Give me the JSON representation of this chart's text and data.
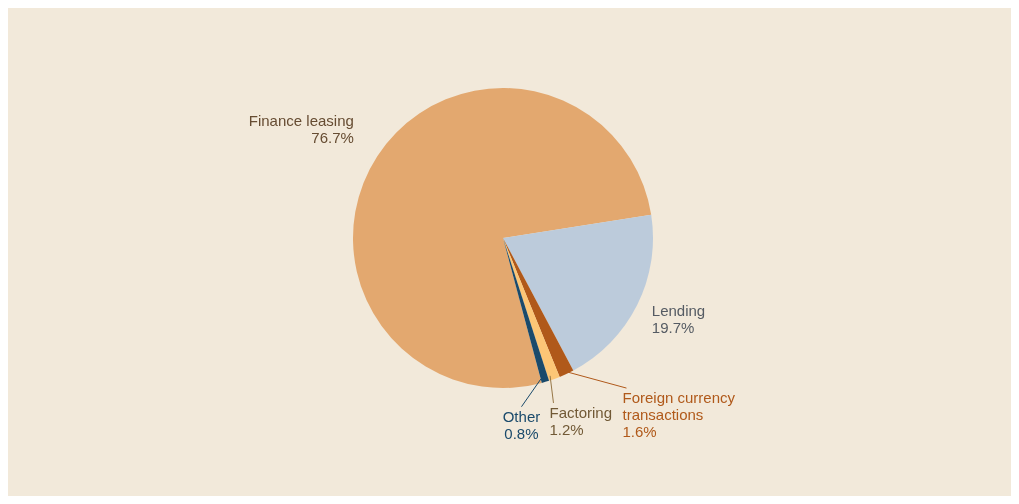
{
  "chart_data": {
    "type": "pie",
    "categories": [
      "Finance leasing",
      "Lending",
      "Foreign currency transactions",
      "Factoring",
      "Other"
    ],
    "values": [
      76.7,
      19.7,
      1.6,
      1.2,
      0.8
    ],
    "colors": [
      "#e3a86f",
      "#bccbdb",
      "#b0591a",
      "#fcc676",
      "#1a4a6b"
    ],
    "value_labels": [
      "76.7%",
      "19.7%",
      "1.6%",
      "1.2%",
      "0.8%"
    ],
    "legend": false
  }
}
